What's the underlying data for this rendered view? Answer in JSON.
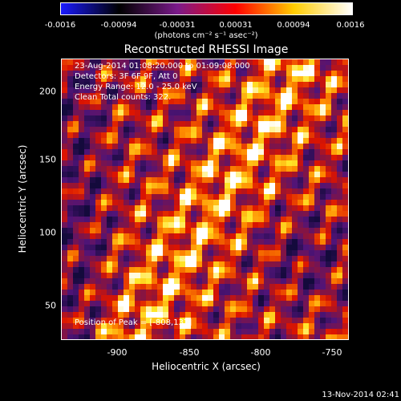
{
  "colorbar": {
    "ticks": [
      "-0.0016",
      "-0.00094",
      "-0.00031",
      "0.00031",
      "0.00094",
      "0.0016"
    ],
    "units": "(photons cm⁻² s⁻¹ asec⁻²)"
  },
  "title": "Reconstructed RHESSI Image",
  "info": {
    "time_range": "23-Aug-2014 01:08:20.000 to 01:09:08.000",
    "detectors": "Detectors: 3F 6F 9F, Att 0",
    "energy": "Energy Range: 12.0 - 25.0 keV",
    "clean": "Clean    Total counts: 322.",
    "peak": "Position of Peak = [-808,137]"
  },
  "axes": {
    "xlabel": "Heliocentric X (arcsec)",
    "ylabel": "Heliocentric Y (arcsec)",
    "xticks": [
      "-900",
      "-850",
      "-800",
      "-750"
    ],
    "yticks": [
      "200",
      "150",
      "100",
      "50"
    ]
  },
  "timestamp": "13-Nov-2014 02:41",
  "colors": {
    "colormap": [
      "#1a1aff",
      "#000000",
      "#7a1a8a",
      "#ff0000",
      "#ffcc00",
      "#ffffff"
    ]
  }
}
